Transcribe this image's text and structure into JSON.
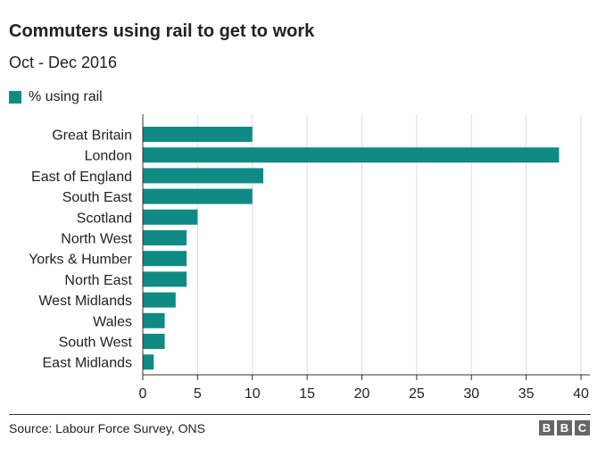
{
  "chart_data": {
    "type": "bar",
    "orientation": "horizontal",
    "title": "Commuters using rail to get to work",
    "subtitle": "Oct - Dec 2016",
    "categories": [
      "Great Britain",
      "London",
      "East of England",
      "South East",
      "Scotland",
      "North West",
      "Yorks & Humber",
      "North East",
      "West Midlands",
      "Wales",
      "South West",
      "East Midlands"
    ],
    "series": [
      {
        "name": "% using rail",
        "values": [
          10,
          38,
          11,
          10,
          5,
          4,
          4,
          4,
          3,
          2,
          2,
          1
        ]
      }
    ],
    "xlim": [
      0,
      40
    ],
    "xticks": [
      0,
      5,
      10,
      15,
      20,
      25,
      30,
      35,
      40
    ],
    "xticklabels": [
      "0",
      "5",
      "10",
      "15",
      "20",
      "25",
      "30",
      "35",
      "40"
    ],
    "grid": "vertical",
    "legend": "top-left"
  },
  "colors": {
    "bar": "#108a84",
    "grid": "#dddddd",
    "axis": "#333333",
    "text": "#222222"
  },
  "footer": {
    "source": "Source: Labour Force Survey, ONS",
    "logo": [
      "B",
      "B",
      "C"
    ]
  }
}
